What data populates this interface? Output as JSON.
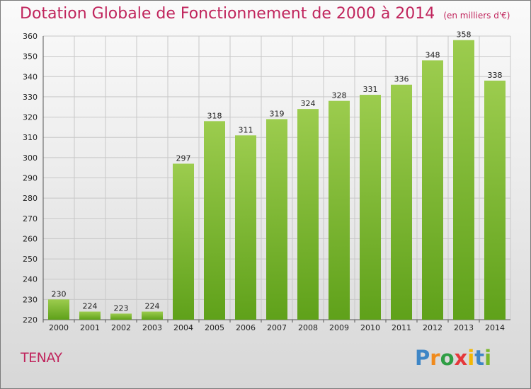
{
  "title": "Dotation Globale de Fonctionnement de 2000 à 2014",
  "unit": "(en milliers d'€)",
  "city": "TENAY",
  "brand": "Proxiti",
  "colors": {
    "title": "#c0245c",
    "bar_top": "#9ccc4e",
    "bar_bottom": "#5fa11a",
    "grid": "#c8c8c8"
  },
  "chart_data": {
    "type": "bar",
    "categories": [
      "2000",
      "2001",
      "2002",
      "2003",
      "2004",
      "2005",
      "2006",
      "2007",
      "2008",
      "2009",
      "2010",
      "2011",
      "2012",
      "2013",
      "2014"
    ],
    "values": [
      230,
      224,
      223,
      224,
      297,
      318,
      311,
      319,
      324,
      328,
      331,
      336,
      348,
      358,
      338
    ],
    "ylim": [
      220,
      360
    ],
    "yticks": [
      220,
      230,
      240,
      250,
      260,
      270,
      280,
      290,
      300,
      310,
      320,
      330,
      340,
      350,
      360
    ],
    "grid": true,
    "legend": "none"
  }
}
